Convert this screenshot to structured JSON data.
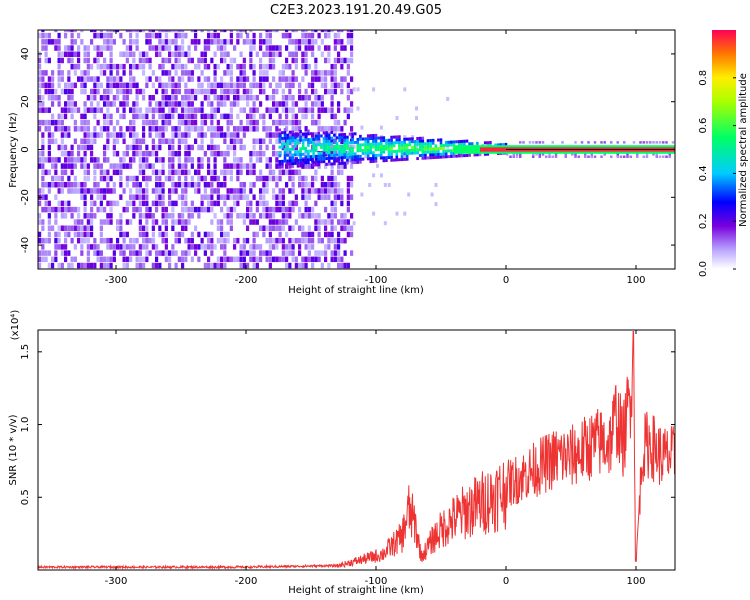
{
  "title": "C2E3.2023.191.20.49.G05",
  "chart_data": [
    {
      "type": "heatmap",
      "xlabel": "Height of straight line (km)",
      "ylabel": "Frequency (Hz)",
      "xlim": [
        -360,
        130
      ],
      "ylim": [
        -50,
        50
      ],
      "xticks": [
        -300,
        -200,
        -100,
        0,
        100
      ],
      "yticks": [
        -40,
        -20,
        0,
        20,
        40
      ],
      "colorbar": {
        "label": "Normalized spectral amplitude",
        "range": [
          0,
          1
        ],
        "ticks": [
          "0.0",
          "0.2",
          "0.4",
          "0.6",
          "0.8"
        ],
        "tick_values": [
          0.0,
          0.2,
          0.4,
          0.6,
          0.8
        ]
      },
      "regions": [
        {
          "x_range": [
            -360,
            -118
          ],
          "description_level": 0.15,
          "frequency_spread": [
            -50,
            50
          ]
        },
        {
          "x_range": [
            -175,
            -40
          ],
          "description_level": 0.35,
          "frequency_spread": [
            -8,
            8
          ]
        },
        {
          "x_range": [
            -40,
            130
          ],
          "description_level": 0.95,
          "frequency_spread": [
            -1.5,
            1.5
          ]
        }
      ],
      "line": {
        "x_range": [
          0,
          130
        ],
        "frequency": 0
      }
    },
    {
      "type": "line",
      "xlabel": "Height of straight line (km)",
      "ylabel": "SNR (10 * v/v)",
      "y_multiplier": "(x10⁴)",
      "xlim": [
        -360,
        130
      ],
      "ylim": [
        0,
        1.65
      ],
      "xticks": [
        -300,
        -200,
        -100,
        0,
        100
      ],
      "yticks": [
        "0.5",
        "1.0",
        "1.5"
      ],
      "ytick_values": [
        0.5,
        1.0,
        1.5
      ],
      "color": "#ee3333",
      "series": [
        {
          "x": [
            -360,
            -300,
            -200,
            -130,
            -110,
            -95,
            -80,
            -75,
            -70,
            -65,
            -55,
            -45,
            -30,
            -20,
            -10,
            0,
            10,
            20,
            30,
            40,
            50,
            60,
            70,
            80,
            85,
            90,
            95,
            98,
            100,
            105,
            110,
            120,
            130
          ],
          "y": [
            0.02,
            0.02,
            0.02,
            0.03,
            0.08,
            0.12,
            0.25,
            0.45,
            0.35,
            0.1,
            0.25,
            0.35,
            0.45,
            0.5,
            0.55,
            0.6,
            0.65,
            0.7,
            0.75,
            0.8,
            0.8,
            0.85,
            0.9,
            0.9,
            1.1,
            0.9,
            1.2,
            1.6,
            0.05,
            0.85,
            0.9,
            0.8,
            0.8
          ]
        }
      ]
    }
  ]
}
